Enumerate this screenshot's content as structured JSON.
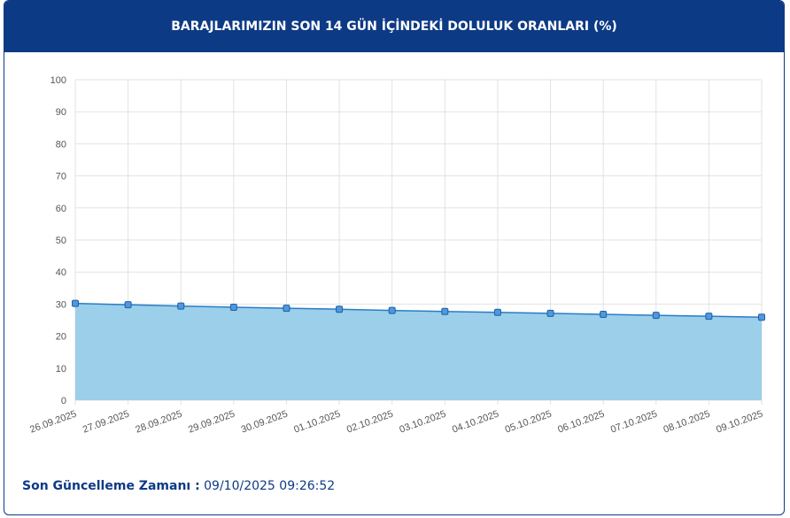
{
  "chart_data": {
    "type": "area",
    "title": "BARAJLARIMIZIN SON 14 GÜN İÇİNDEKİ DOLULUK ORANLARI (%)",
    "categories": [
      "26.09.2025",
      "27.09.2025",
      "28.09.2025",
      "29.09.2025",
      "30.09.2025",
      "01.10.2025",
      "02.10.2025",
      "03.10.2025",
      "04.10.2025",
      "05.10.2025",
      "06.10.2025",
      "07.10.2025",
      "08.10.2025",
      "09.10.2025"
    ],
    "values": [
      30.2,
      29.8,
      29.4,
      29.0,
      28.7,
      28.4,
      28.0,
      27.7,
      27.4,
      27.1,
      26.8,
      26.5,
      26.2,
      25.9
    ],
    "color": "#2a7cc7",
    "fill_color": "#9bcfea",
    "ylim": [
      0,
      100
    ],
    "yticks": [
      0,
      10,
      20,
      30,
      40,
      50,
      60,
      70,
      80,
      90,
      100
    ],
    "grid": true
  },
  "footer": {
    "label": "Son Güncelleme Zamanı :",
    "value": "09/10/2025 09:26:52"
  }
}
